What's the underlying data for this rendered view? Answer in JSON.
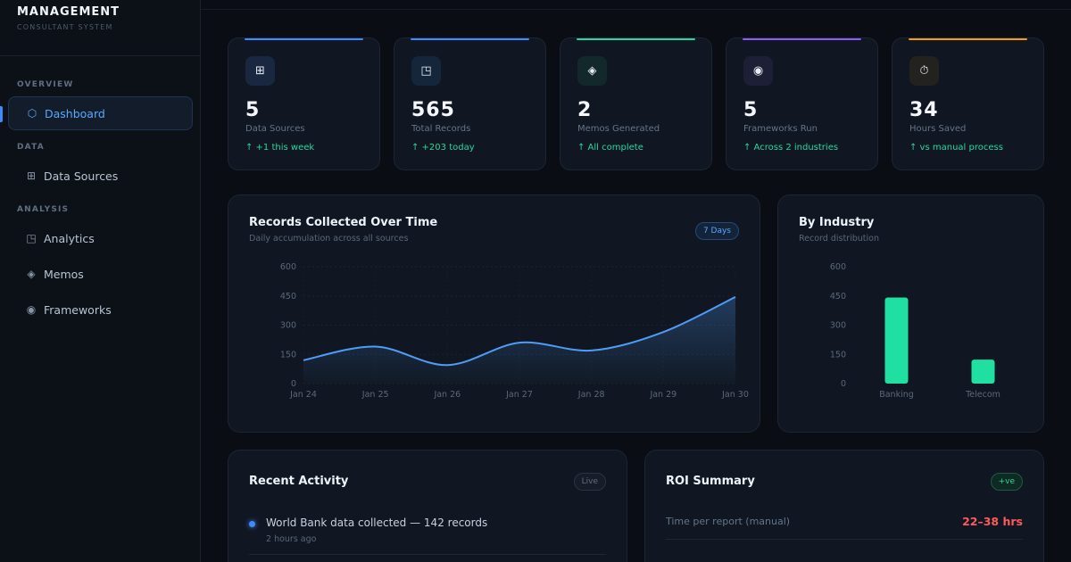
{
  "brand": {
    "title": "MANAGEMENT",
    "subtitle": "CONSULTANT SYSTEM"
  },
  "sidebar": {
    "sections": [
      {
        "label": "OVERVIEW"
      },
      {
        "label": "DATA"
      },
      {
        "label": "ANALYSIS"
      }
    ],
    "items": [
      {
        "label": "Dashboard",
        "icon": "hexagon-icon",
        "glyph": "⬡",
        "active": true
      },
      {
        "label": "Data Sources",
        "icon": "grid-icon",
        "glyph": "⊞"
      },
      {
        "label": "Analytics",
        "icon": "chart-square-icon",
        "glyph": "◳"
      },
      {
        "label": "Memos",
        "icon": "diamond-icon",
        "glyph": "◈"
      },
      {
        "label": "Frameworks",
        "icon": "target-icon",
        "glyph": "◉"
      }
    ]
  },
  "stats": [
    {
      "value": "5",
      "label": "Data Sources",
      "delta": "↑ +1 this week",
      "icon": "grid-icon",
      "glyph": "⊞",
      "accent": "#3d8bfd",
      "icon_bg": "#1a2740",
      "icon_color": "#e6edf5"
    },
    {
      "value": "565",
      "label": "Total Records",
      "delta": "↑ +203 today",
      "icon": "chart-square-icon",
      "glyph": "◳",
      "accent": "#3d8bfd",
      "icon_bg": "#15263a",
      "icon_color": "#e6edf5"
    },
    {
      "value": "2",
      "label": "Memos Generated",
      "delta": "↑ All complete",
      "icon": "diamond-icon",
      "glyph": "◈",
      "accent": "#28d79a",
      "icon_bg": "#13282a",
      "icon_color": "#e6edf5"
    },
    {
      "value": "5",
      "label": "Frameworks Run",
      "delta": "↑ Across 2 industries",
      "icon": "target-icon",
      "glyph": "◉",
      "accent": "#8b5cf6",
      "icon_bg": "#1d1f36",
      "icon_color": "#e6edf5"
    },
    {
      "value": "34",
      "label": "Hours Saved",
      "delta": "↑ vs manual process",
      "icon": "stopwatch-icon",
      "glyph": "⏱",
      "accent": "#f59e0b",
      "icon_bg": "#23221f",
      "icon_color": "#e6edf5"
    }
  ],
  "records_panel": {
    "title": "Records Collected Over Time",
    "subtitle": "Daily accumulation across all sources",
    "badge": "7 Days"
  },
  "industry_panel": {
    "title": "By Industry",
    "subtitle": "Record distribution"
  },
  "activity_panel": {
    "title": "Recent Activity",
    "badge": "Live",
    "items": [
      {
        "text": "World Bank data collected — 142 records",
        "time": "2 hours ago"
      }
    ]
  },
  "roi_panel": {
    "title": "ROI Summary",
    "badge": "+ve",
    "rows": [
      {
        "label": "Time per report (manual)",
        "value": "22–38 hrs",
        "value_color": "#ff5a5a"
      }
    ]
  },
  "chart_data": [
    {
      "type": "area",
      "x": [
        "Jan 24",
        "Jan 25",
        "Jan 26",
        "Jan 27",
        "Jan 28",
        "Jan 29",
        "Jan 30"
      ],
      "series": [
        {
          "values": [
            120,
            190,
            95,
            210,
            170,
            265,
            445
          ]
        }
      ],
      "y_ticks": [
        "0",
        "150",
        "300",
        "450",
        "600"
      ],
      "ylim": [
        0,
        600
      ],
      "grid": true,
      "color": "#4f9cf7"
    },
    {
      "type": "bar",
      "categories": [
        "Banking",
        "Telecom"
      ],
      "values": [
        442,
        123
      ],
      "y_ticks": [
        "0",
        "150",
        "300",
        "450",
        "600"
      ],
      "ylim": [
        0,
        600
      ],
      "color": "#1fe0a0"
    }
  ]
}
